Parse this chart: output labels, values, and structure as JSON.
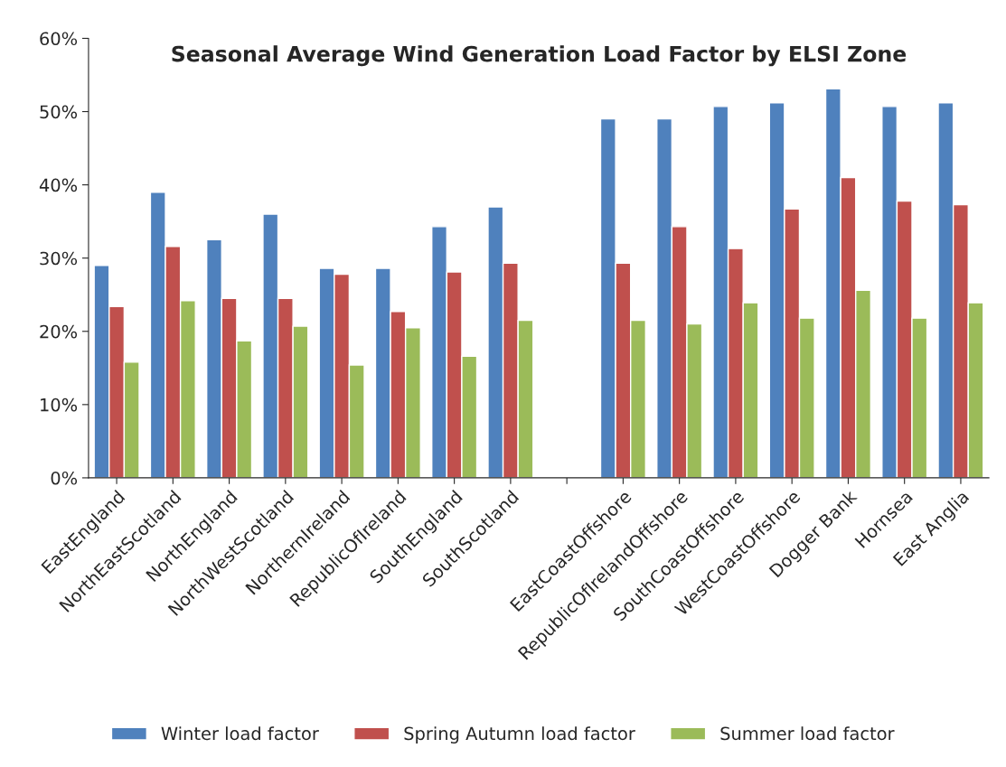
{
  "chart_data": {
    "type": "bar",
    "title": "Seasonal Average Wind Generation Load Factor by ELSI Zone",
    "categories": [
      "EastEngland",
      "NorthEastScotland",
      "NorthEngland",
      "NorthWestScotland",
      "NorthernIreland",
      "RepublicOfIreland",
      "SouthEngland",
      "SouthScotland",
      null,
      "EastCoastOffshore",
      "RepublicOfIrelandOffshore",
      "SouthCoastOffshore",
      "WestCoastOffshore",
      "Dogger Bank",
      "Hornsea",
      "East Anglia"
    ],
    "series": [
      {
        "name": "Winter load factor",
        "color": "#4f81bd",
        "values": [
          29.0,
          39.0,
          32.5,
          36.0,
          28.6,
          28.6,
          34.3,
          37.0,
          null,
          49.0,
          49.0,
          50.7,
          51.2,
          53.1,
          50.7,
          51.2
        ]
      },
      {
        "name": "Spring Autumn load factor",
        "color": "#c0504d",
        "values": [
          23.4,
          31.6,
          24.5,
          24.5,
          27.8,
          22.7,
          28.1,
          29.3,
          null,
          29.3,
          34.3,
          31.3,
          36.7,
          41.0,
          37.8,
          37.3
        ]
      },
      {
        "name": "Summer load factor",
        "color": "#9bbb59",
        "values": [
          15.8,
          24.2,
          18.7,
          20.7,
          15.4,
          20.5,
          16.6,
          21.5,
          null,
          21.5,
          21.0,
          23.9,
          21.8,
          25.6,
          21.8,
          23.9
        ]
      }
    ],
    "ylim": [
      0,
      60
    ],
    "yticks": [
      {
        "value": 0,
        "label": "0%"
      },
      {
        "value": 10,
        "label": "10%"
      },
      {
        "value": 20,
        "label": "20%"
      },
      {
        "value": 30,
        "label": "30%"
      },
      {
        "value": 40,
        "label": "40%"
      },
      {
        "value": 50,
        "label": "50%"
      },
      {
        "value": 60,
        "label": "60%"
      }
    ],
    "grid": false,
    "legend": "bottom"
  }
}
